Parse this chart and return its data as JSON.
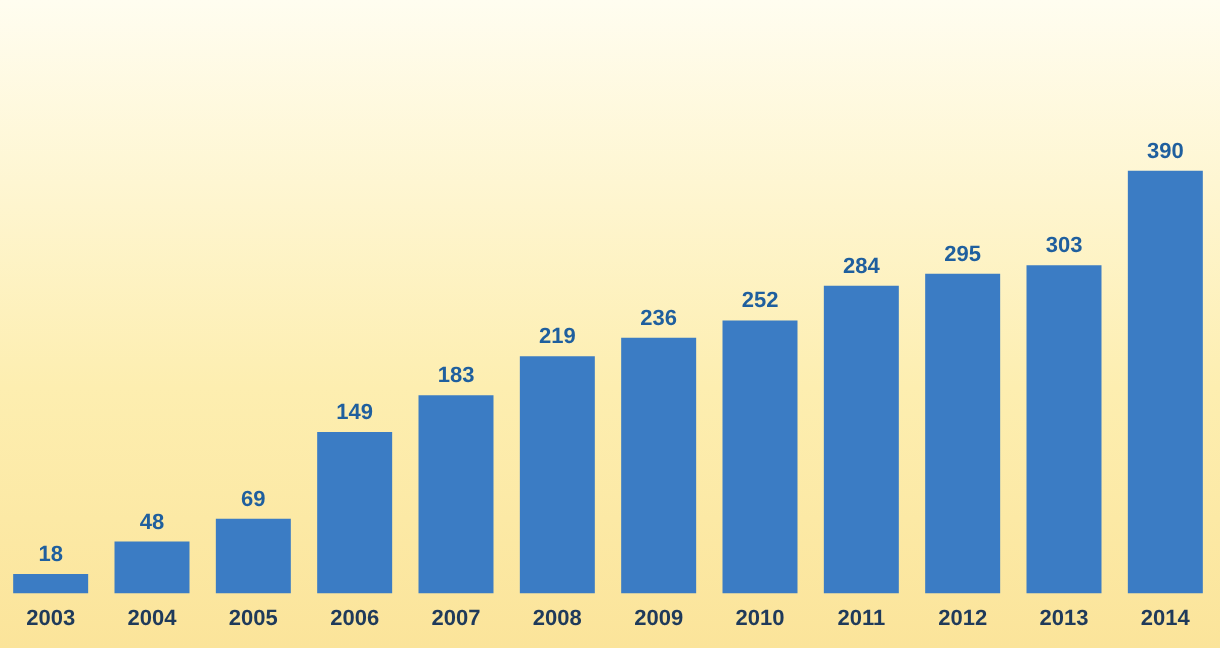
{
  "chart_data": {
    "type": "bar",
    "categories": [
      "2003",
      "2004",
      "2005",
      "2006",
      "2007",
      "2008",
      "2009",
      "2010",
      "2011",
      "2012",
      "2013",
      "2014"
    ],
    "values": [
      18,
      48,
      69,
      149,
      183,
      219,
      236,
      252,
      284,
      295,
      303,
      390
    ],
    "color": "#3b7cc4",
    "data_labels": true,
    "grid": false,
    "legend": false
  }
}
